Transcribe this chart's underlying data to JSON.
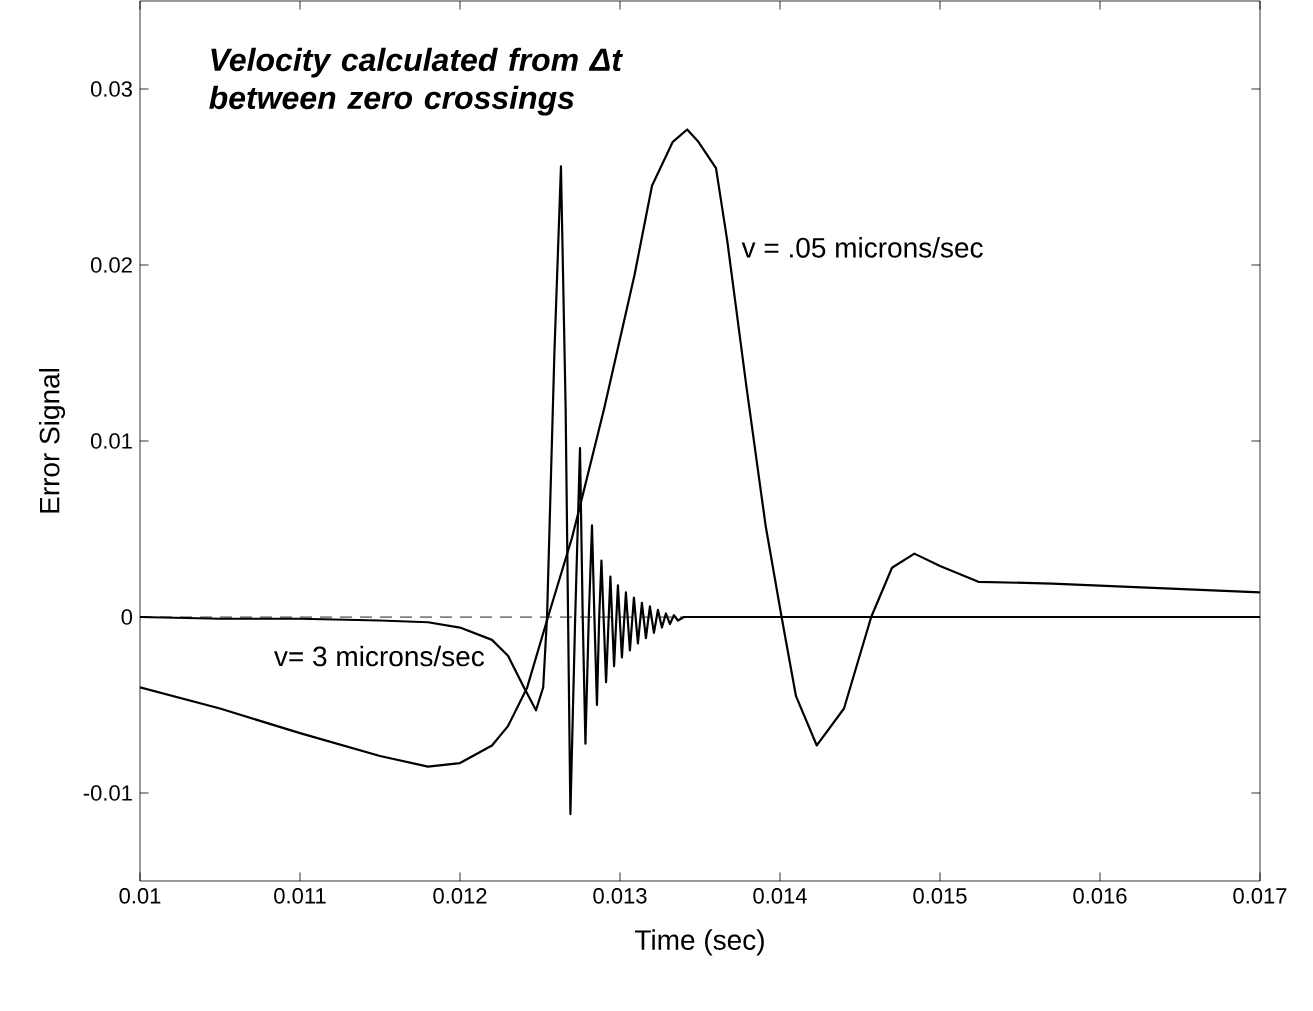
{
  "chart_data": {
    "type": "line",
    "xlabel": "Time (sec)",
    "ylabel": "Error Signal",
    "annotations": [
      "*Velocity calculated from Δt between zero crossings*"
    ],
    "xlim": [
      0.01,
      0.017
    ],
    "ylim": [
      -0.015,
      0.035
    ],
    "xticks": [
      0.01,
      0.011,
      0.012,
      0.013,
      0.014,
      0.015,
      0.016,
      0.017
    ],
    "yticks": [
      -0.01,
      0,
      0.01,
      0.02,
      0.03
    ],
    "ref_lines": [
      {
        "axis": "y",
        "value": 0,
        "color": "#000000",
        "line_style": "dashed"
      }
    ],
    "series": [
      {
        "name": "v = .05 microns/sec",
        "color": "#000000",
        "x": [
          0.01,
          0.0105,
          0.011,
          0.0115,
          0.0118,
          0.012,
          0.0122,
          0.0123,
          0.01242,
          0.01255,
          0.0127,
          0.01275,
          0.0129,
          0.01309,
          0.0132,
          0.01333,
          0.01342,
          0.01349,
          0.0136,
          0.01367,
          0.01379,
          0.01391,
          0.01401,
          0.0141,
          0.01423,
          0.0144,
          0.01457,
          0.0147,
          0.01484,
          0.015,
          0.01524,
          0.0157,
          0.017
        ],
        "values": [
          -0.004,
          -0.0052,
          -0.0066,
          -0.0079,
          -0.0085,
          -0.0083,
          -0.0073,
          -0.0062,
          -0.004,
          0,
          0.0045,
          0.0063,
          0.0118,
          0.0194,
          0.0245,
          0.027,
          0.0277,
          0.027,
          0.0255,
          0.0214,
          0.0131,
          0.0052,
          0,
          -0.0045,
          -0.0073,
          -0.0052,
          0,
          0.0028,
          0.0036,
          0.0029,
          0.002,
          0.0019,
          0.0014
        ]
      },
      {
        "name": "v= 3 microns/sec",
        "color": "#000000",
        "x": [
          0.01,
          0.0105,
          0.011,
          0.0115,
          0.0118,
          0.012,
          0.0122,
          0.0123,
          0.0124,
          0.012475,
          0.01252,
          0.012544,
          0.01259,
          0.012631,
          0.01266,
          0.01269,
          0.01272,
          0.01275,
          0.012767,
          0.012784,
          0.012805,
          0.012825,
          0.01284,
          0.012856,
          0.01287,
          0.012884,
          0.012913,
          0.01294,
          0.012963,
          0.012987,
          0.013012,
          0.013037,
          0.013062,
          0.013087,
          0.013112,
          0.013137,
          0.013162,
          0.013187,
          0.013212,
          0.013237,
          0.013262,
          0.013287,
          0.013312,
          0.013337,
          0.013362,
          0.0134,
          0.017
        ],
        "values": [
          0,
          -0.0001,
          -0.0001,
          -0.0002,
          -0.0003,
          -0.0006,
          -0.0013,
          -0.0022,
          -0.004,
          -0.0053,
          -0.004,
          0,
          0.015,
          0.0256,
          0.012,
          -0.0112,
          0,
          0.0096,
          0,
          -0.0072,
          0,
          0.0052,
          0,
          -0.005,
          0,
          0.0032,
          -0.0037,
          0.0023,
          -0.0028,
          0.0018,
          -0.0023,
          0.0014,
          -0.0019,
          0.0011,
          -0.0015,
          0.0008,
          -0.0012,
          0.0006,
          -0.0009,
          0.0004,
          -0.0006,
          0.0002,
          -0.0004,
          0.0001,
          -0.0002,
          0,
          0
        ]
      }
    ]
  }
}
